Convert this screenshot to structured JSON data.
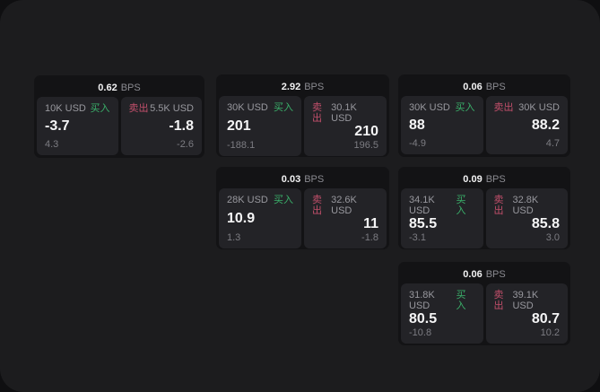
{
  "theme": {
    "outer_bg": "#0f0f11",
    "surface_bg": "#1c1c1e",
    "card_bg": "#131315",
    "panel_bg": "#232327",
    "buy_color": "#3ab06a",
    "sell_color": "#c24f6b"
  },
  "labels": {
    "bps_unit": "BPS",
    "buy_tag": "买入",
    "sell_tag": "卖出"
  },
  "cards": [
    {
      "bps": "0.62",
      "buy": {
        "amount": "10K USD",
        "value": "-3.7",
        "delta": "4.3"
      },
      "sell": {
        "amount": "5.5K USD",
        "value": "-1.8",
        "delta": "-2.6"
      }
    },
    {
      "bps": "2.92",
      "buy": {
        "amount": "30K USD",
        "value": "201",
        "delta": "-188.1"
      },
      "sell": {
        "amount": "30.1K USD",
        "value": "210",
        "delta": "196.5"
      }
    },
    {
      "bps": "0.06",
      "buy": {
        "amount": "30K USD",
        "value": "88",
        "delta": "-4.9"
      },
      "sell": {
        "amount": "30K USD",
        "value": "88.2",
        "delta": "4.7"
      }
    },
    {
      "bps": "0.03",
      "buy": {
        "amount": "28K USD",
        "value": "10.9",
        "delta": "1.3"
      },
      "sell": {
        "amount": "32.6K USD",
        "value": "11",
        "delta": "-1.8"
      }
    },
    {
      "bps": "0.09",
      "buy": {
        "amount": "34.1K USD",
        "value": "85.5",
        "delta": "-3.1"
      },
      "sell": {
        "amount": "32.8K USD",
        "value": "85.8",
        "delta": "3.0"
      }
    },
    {
      "bps": "0.06",
      "buy": {
        "amount": "31.8K USD",
        "value": "80.5",
        "delta": "-10.8"
      },
      "sell": {
        "amount": "39.1K USD",
        "value": "80.7",
        "delta": "10.2"
      }
    }
  ]
}
